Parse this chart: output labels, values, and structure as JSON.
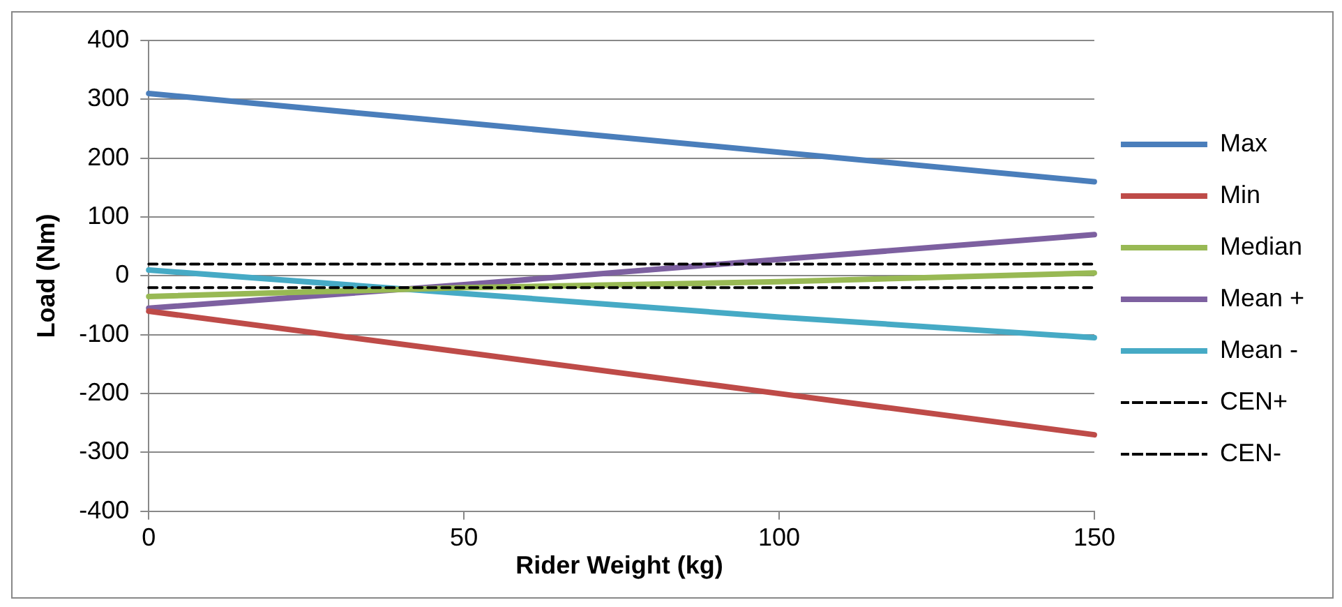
{
  "chart_data": {
    "type": "line",
    "ylabel": "Load (Nm)",
    "xlabel": "Rider Weight (kg)",
    "x": [
      0,
      50,
      100,
      150
    ],
    "xlim": [
      0,
      150
    ],
    "xticks": [
      0,
      50,
      100,
      150
    ],
    "ylim": [
      -400,
      400
    ],
    "yticks": [
      -400,
      -300,
      -200,
      -100,
      0,
      100,
      200,
      300,
      400
    ],
    "grid": "y",
    "legend": "right",
    "marker": "none",
    "series": [
      {
        "name": "Max",
        "color": "#4a7ebb",
        "values": [
          310,
          260,
          210,
          160
        ]
      },
      {
        "name": "Min",
        "color": "#be4b48",
        "values": [
          -60,
          -130,
          -200,
          -270
        ]
      },
      {
        "name": "Median",
        "color": "#98b954",
        "values": [
          -35,
          -20,
          -10,
          5
        ]
      },
      {
        "name": "Mean +",
        "color": "#7d60a0",
        "values": [
          -55,
          -15,
          28,
          70
        ]
      },
      {
        "name": "Mean -",
        "color": "#46aac5",
        "values": [
          10,
          -30,
          -70,
          -105
        ]
      },
      {
        "name": "CEN+",
        "color": "#000000",
        "line_style": "dashed",
        "values": [
          20,
          20,
          20,
          20
        ]
      },
      {
        "name": "CEN-",
        "color": "#000000",
        "line_style": "dashed",
        "values": [
          -20,
          -20,
          -20,
          -20
        ]
      }
    ]
  }
}
